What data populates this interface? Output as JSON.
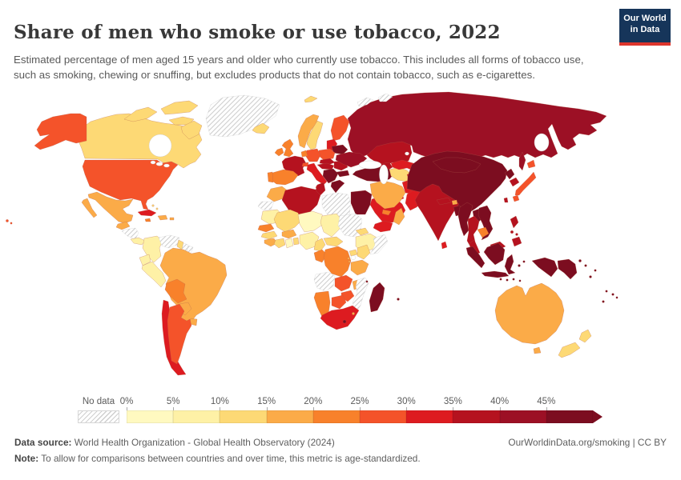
{
  "header": {
    "title": "Share of men who smoke or use tobacco, 2022",
    "subtitle": "Estimated percentage of men aged 15 years and older who currently use tobacco. This includes all forms of tobacco use, such as smoking, chewing or snuffing, but excludes products that do not contain tobacco, such as e-cigarettes.",
    "logo_line1": "Our World",
    "logo_line2": "in Data",
    "logo_bg": "#16355a",
    "logo_accent": "#dd352c"
  },
  "legend": {
    "no_data_label": "No data",
    "tick_labels": [
      "0%",
      "5%",
      "10%",
      "15%",
      "20%",
      "25%",
      "30%",
      "35%",
      "40%",
      "45%"
    ]
  },
  "footer": {
    "source_label": "Data source:",
    "source_text": "World Health Organization - Global Health Observatory (2024)",
    "attribution": "OurWorldinData.org/smoking | CC BY",
    "note_label": "Note:",
    "note_text": "To allow for comparisons between countries and over time, this metric is age-standardized."
  },
  "chart_data": {
    "type": "choropleth",
    "title": "Share of men who smoke or use tobacco",
    "year": 2022,
    "unit": "%",
    "legend_position": "bottom",
    "bin_edges": [
      0,
      5,
      10,
      15,
      20,
      25,
      30,
      35,
      40,
      45
    ],
    "bin_labels": [
      "0-5%",
      "5-10%",
      "10-15%",
      "15-20%",
      "20-25%",
      "25-30%",
      "30-35%",
      "35-40%",
      "40-45%",
      "45%+"
    ],
    "bin_colors": [
      "#fff9c0",
      "#fef1a6",
      "#fdd975",
      "#fbab48",
      "#f8812b",
      "#f4532a",
      "#dd1b20",
      "#b5121f",
      "#9c1025",
      "#7c0d20"
    ],
    "no_data": {
      "label": "No data",
      "pattern": "diagonal-hatch"
    },
    "countries": [
      {
        "id": "canada",
        "name": "Canada",
        "bin": 2,
        "range": "10-15%"
      },
      {
        "id": "greenland",
        "name": "Greenland",
        "bin": "nd",
        "range": "No data"
      },
      {
        "id": "iceland",
        "name": "Iceland",
        "bin": 2,
        "range": "10-15%"
      },
      {
        "id": "usa",
        "name": "United States",
        "bin": 5,
        "range": "25-30%"
      },
      {
        "id": "mexico",
        "name": "Mexico",
        "bin": 3,
        "range": "15-20%"
      },
      {
        "id": "guatemala",
        "name": "Guatemala",
        "bin": 3,
        "range": "15-20%"
      },
      {
        "id": "honduras-nicaragua",
        "name": "Honduras & Nicaragua",
        "bin": "nd",
        "range": "No data"
      },
      {
        "id": "costa-rica-panama",
        "name": "Costa Rica & Panama",
        "bin": 1,
        "range": "5-10%"
      },
      {
        "id": "cuba",
        "name": "Cuba",
        "bin": 6,
        "range": "30-35%"
      },
      {
        "id": "jamaica",
        "name": "Jamaica",
        "bin": 4,
        "range": "20-25%"
      },
      {
        "id": "hispaniola",
        "name": "Haiti & Dominican Republic",
        "bin": 3,
        "range": "15-20%"
      },
      {
        "id": "puerto-rico",
        "name": "Puerto Rico",
        "bin": 3,
        "range": "15-20%"
      },
      {
        "id": "bahamas",
        "name": "Bahamas",
        "bin": 2,
        "range": "10-15%"
      },
      {
        "id": "colombia",
        "name": "Colombia",
        "bin": 1,
        "range": "5-10%"
      },
      {
        "id": "venezuela",
        "name": "Venezuela",
        "bin": "nd",
        "range": "No data"
      },
      {
        "id": "guyana",
        "name": "Guyana",
        "bin": 2,
        "range": "10-15%"
      },
      {
        "id": "suriname",
        "name": "Suriname",
        "bin": "nd",
        "range": "No data"
      },
      {
        "id": "french-guiana",
        "name": "French Guiana",
        "bin": "nd",
        "range": "No data"
      },
      {
        "id": "ecuador",
        "name": "Ecuador",
        "bin": 1,
        "range": "5-10%"
      },
      {
        "id": "peru",
        "name": "Peru",
        "bin": 1,
        "range": "5-10%"
      },
      {
        "id": "brazil",
        "name": "Brazil",
        "bin": 3,
        "range": "15-20%"
      },
      {
        "id": "bolivia",
        "name": "Bolivia",
        "bin": 4,
        "range": "20-25%"
      },
      {
        "id": "paraguay",
        "name": "Paraguay",
        "bin": 3,
        "range": "15-20%"
      },
      {
        "id": "uruguay",
        "name": "Uruguay",
        "bin": 3,
        "range": "15-20%"
      },
      {
        "id": "chile",
        "name": "Chile",
        "bin": 6,
        "range": "30-35%"
      },
      {
        "id": "argentina",
        "name": "Argentina",
        "bin": 5,
        "range": "25-30%"
      },
      {
        "id": "svalbard",
        "name": "Svalbard",
        "bin": 2,
        "range": "10-15%"
      },
      {
        "id": "uk",
        "name": "United Kingdom",
        "bin": 4,
        "range": "20-25%"
      },
      {
        "id": "ireland",
        "name": "Ireland",
        "bin": 4,
        "range": "20-25%"
      },
      {
        "id": "norway",
        "name": "Norway",
        "bin": 3,
        "range": "15-20%"
      },
      {
        "id": "sweden",
        "name": "Sweden",
        "bin": 2,
        "range": "10-15%"
      },
      {
        "id": "finland",
        "name": "Finland",
        "bin": 5,
        "range": "25-30%"
      },
      {
        "id": "denmark",
        "name": "Denmark",
        "bin": 4,
        "range": "20-25%"
      },
      {
        "id": "benelux",
        "name": "Belgium & Netherlands",
        "bin": 4,
        "range": "20-25%"
      },
      {
        "id": "germany",
        "name": "Germany",
        "bin": 5,
        "range": "25-30%"
      },
      {
        "id": "poland",
        "name": "Poland",
        "bin": 5,
        "range": "25-30%"
      },
      {
        "id": "baltics",
        "name": "Baltic states",
        "bin": 6,
        "range": "30-35%"
      },
      {
        "id": "belarus",
        "name": "Belarus",
        "bin": 9,
        "range": "45%+"
      },
      {
        "id": "ukraine",
        "name": "Ukraine",
        "bin": 8,
        "range": "40-45%"
      },
      {
        "id": "france",
        "name": "France",
        "bin": 7,
        "range": "35-40%"
      },
      {
        "id": "spain",
        "name": "Spain",
        "bin": 4,
        "range": "20-25%"
      },
      {
        "id": "portugal",
        "name": "Portugal",
        "bin": 4,
        "range": "20-25%"
      },
      {
        "id": "switzerland",
        "name": "Switzerland",
        "bin": 5,
        "range": "25-30%"
      },
      {
        "id": "italy",
        "name": "Italy",
        "bin": 6,
        "range": "30-35%"
      },
      {
        "id": "czech-slovakia",
        "name": "Czechia & Slovakia",
        "bin": 7,
        "range": "35-40%"
      },
      {
        "id": "austria-hungary",
        "name": "Austria & Hungary",
        "bin": 7,
        "range": "35-40%"
      },
      {
        "id": "balkans",
        "name": "Western Balkans",
        "bin": 9,
        "range": "45%+"
      },
      {
        "id": "romania",
        "name": "Romania",
        "bin": 7,
        "range": "35-40%"
      },
      {
        "id": "bulgaria",
        "name": "Bulgaria",
        "bin": 9,
        "range": "45%+"
      },
      {
        "id": "greece",
        "name": "Greece",
        "bin": 9,
        "range": "45%+"
      },
      {
        "id": "russia",
        "name": "Russia",
        "bin": 8,
        "range": "40-45%"
      },
      {
        "id": "arctic-islands",
        "name": "Arctic islands",
        "bin": "nd",
        "range": "No data"
      },
      {
        "id": "kazakhstan",
        "name": "Kazakhstan",
        "bin": 7,
        "range": "35-40%"
      },
      {
        "id": "caucasus",
        "name": "Georgia, Armenia & Azerbaijan",
        "bin": 7,
        "range": "35-40%"
      },
      {
        "id": "turkey",
        "name": "Turkey",
        "bin": 9,
        "range": "45%+"
      },
      {
        "id": "syria",
        "name": "Syria",
        "bin": 9,
        "range": "45%+"
      },
      {
        "id": "levant",
        "name": "Israel, Lebanon & Jordan",
        "bin": 9,
        "range": "45%+"
      },
      {
        "id": "iraq",
        "name": "Iraq",
        "bin": 6,
        "range": "30-35%"
      },
      {
        "id": "saudi-arabia",
        "name": "Saudi Arabia",
        "bin": 6,
        "range": "30-35%"
      },
      {
        "id": "yemen",
        "name": "Yemen",
        "bin": 6,
        "range": "30-35%"
      },
      {
        "id": "oman",
        "name": "Oman",
        "bin": 3,
        "range": "15-20%"
      },
      {
        "id": "uae-qatar",
        "name": "UAE & Qatar",
        "bin": 4,
        "range": "20-25%"
      },
      {
        "id": "iran",
        "name": "Iran",
        "bin": 3,
        "range": "15-20%"
      },
      {
        "id": "turkmenistan",
        "name": "Turkmenistan",
        "bin": 2,
        "range": "10-15%"
      },
      {
        "id": "uzbekistan",
        "name": "Uzbekistan",
        "bin": 6,
        "range": "30-35%"
      },
      {
        "id": "kyrgyzstan-tajikistan",
        "name": "Kyrgyzstan & Tajikistan",
        "bin": 6,
        "range": "30-35%"
      },
      {
        "id": "afghanistan",
        "name": "Afghanistan",
        "bin": 6,
        "range": "30-35%"
      },
      {
        "id": "pakistan",
        "name": "Pakistan",
        "bin": 6,
        "range": "30-35%"
      },
      {
        "id": "india",
        "name": "India",
        "bin": 7,
        "range": "35-40%"
      },
      {
        "id": "nepal",
        "name": "Nepal",
        "bin": 7,
        "range": "35-40%"
      },
      {
        "id": "bhutan",
        "name": "Bhutan",
        "bin": 3,
        "range": "15-20%"
      },
      {
        "id": "bangladesh",
        "name": "Bangladesh",
        "bin": 9,
        "range": "45%+"
      },
      {
        "id": "sri-lanka",
        "name": "Sri Lanka",
        "bin": 6,
        "range": "30-35%"
      },
      {
        "id": "china",
        "name": "China",
        "bin": 9,
        "range": "45%+"
      },
      {
        "id": "mongolia",
        "name": "Mongolia",
        "bin": 9,
        "range": "45%+"
      },
      {
        "id": "north-korea",
        "name": "North Korea",
        "bin": 9,
        "range": "45%+"
      },
      {
        "id": "south-korea",
        "name": "South Korea",
        "bin": 7,
        "range": "35-40%"
      },
      {
        "id": "japan",
        "name": "Japan",
        "bin": 5,
        "range": "25-30%"
      },
      {
        "id": "taiwan",
        "name": "Taiwan",
        "bin": 7,
        "range": "35-40%"
      },
      {
        "id": "myanmar",
        "name": "Myanmar",
        "bin": 9,
        "range": "45%+"
      },
      {
        "id": "laos",
        "name": "Laos",
        "bin": 9,
        "range": "45%+"
      },
      {
        "id": "thailand",
        "name": "Thailand",
        "bin": 7,
        "range": "35-40%"
      },
      {
        "id": "vietnam",
        "name": "Vietnam",
        "bin": 9,
        "range": "45%+"
      },
      {
        "id": "cambodia",
        "name": "Cambodia",
        "bin": 4,
        "range": "20-25%"
      },
      {
        "id": "malaysia",
        "name": "Malaysia",
        "bin": 7,
        "range": "35-40%"
      },
      {
        "id": "philippines",
        "name": "Philippines",
        "bin": 7,
        "range": "35-40%"
      },
      {
        "id": "indonesia",
        "name": "Indonesia",
        "bin": 9,
        "range": "45%+"
      },
      {
        "id": "papua-new-guinea",
        "name": "Papua New Guinea",
        "bin": 9,
        "range": "45%+"
      },
      {
        "id": "pacific-islands",
        "name": "Fiji & Pacific islands",
        "bin": 9,
        "range": "45%+"
      },
      {
        "id": "morocco",
        "name": "Morocco",
        "bin": 3,
        "range": "15-20%"
      },
      {
        "id": "western-sahara",
        "name": "Western Sahara",
        "bin": "nd",
        "range": "No data"
      },
      {
        "id": "algeria",
        "name": "Algeria",
        "bin": 7,
        "range": "35-40%"
      },
      {
        "id": "tunisia",
        "name": "Tunisia",
        "bin": 7,
        "range": "35-40%"
      },
      {
        "id": "libya",
        "name": "Libya",
        "bin": "nd",
        "range": "No data"
      },
      {
        "id": "egypt",
        "name": "Egypt",
        "bin": 9,
        "range": "45%+"
      },
      {
        "id": "mauritania",
        "name": "Mauritania",
        "bin": 1,
        "range": "5-10%"
      },
      {
        "id": "mali",
        "name": "Mali",
        "bin": 2,
        "range": "10-15%"
      },
      {
        "id": "niger",
        "name": "Niger",
        "bin": 0,
        "range": "0-5%"
      },
      {
        "id": "chad",
        "name": "Chad",
        "bin": 1,
        "range": "5-10%"
      },
      {
        "id": "sudan",
        "name": "Sudan",
        "bin": "nd",
        "range": "No data"
      },
      {
        "id": "eritrea",
        "name": "Eritrea",
        "bin": 2,
        "range": "10-15%"
      },
      {
        "id": "ethiopia",
        "name": "Ethiopia",
        "bin": 1,
        "range": "5-10%"
      },
      {
        "id": "somalia",
        "name": "Somalia",
        "bin": "nd",
        "range": "No data"
      },
      {
        "id": "senegal",
        "name": "Senegal",
        "bin": 4,
        "range": "20-25%"
      },
      {
        "id": "guinea",
        "name": "Guinea",
        "bin": 2,
        "range": "10-15%"
      },
      {
        "id": "sierra-leone-liberia",
        "name": "Sierra Leone & Liberia",
        "bin": 3,
        "range": "15-20%"
      },
      {
        "id": "ivory-coast",
        "name": "Côte d'Ivoire",
        "bin": 2,
        "range": "10-15%"
      },
      {
        "id": "ghana",
        "name": "Ghana",
        "bin": 0,
        "range": "0-5%"
      },
      {
        "id": "togo-benin",
        "name": "Togo & Benin",
        "bin": 2,
        "range": "10-15%"
      },
      {
        "id": "burkina-faso",
        "name": "Burkina Faso",
        "bin": 3,
        "range": "15-20%"
      },
      {
        "id": "nigeria",
        "name": "Nigeria",
        "bin": 1,
        "range": "5-10%"
      },
      {
        "id": "cameroon",
        "name": "Cameroon",
        "bin": 2,
        "range": "10-15%"
      },
      {
        "id": "central-african-republic",
        "name": "Central African Republic",
        "bin": 2,
        "range": "10-15%"
      },
      {
        "id": "gabon-congo",
        "name": "Gabon & Congo",
        "bin": 4,
        "range": "20-25%"
      },
      {
        "id": "drc",
        "name": "Democratic Republic of Congo",
        "bin": 4,
        "range": "20-25%"
      },
      {
        "id": "uganda",
        "name": "Uganda",
        "bin": 2,
        "range": "10-15%"
      },
      {
        "id": "kenya",
        "name": "Kenya",
        "bin": 2,
        "range": "10-15%"
      },
      {
        "id": "tanzania",
        "name": "Tanzania",
        "bin": 3,
        "range": "15-20%"
      },
      {
        "id": "rwanda-burundi",
        "name": "Rwanda & Burundi",
        "bin": 3,
        "range": "15-20%"
      },
      {
        "id": "angola",
        "name": "Angola",
        "bin": "nd",
        "range": "No data"
      },
      {
        "id": "zambia",
        "name": "Zambia",
        "bin": 5,
        "range": "25-30%"
      },
      {
        "id": "malawi",
        "name": "Malawi",
        "bin": 3,
        "range": "15-20%"
      },
      {
        "id": "mozambique",
        "name": "Mozambique",
        "bin": "nd",
        "range": "No data"
      },
      {
        "id": "zimbabwe",
        "name": "Zimbabwe",
        "bin": 5,
        "range": "25-30%"
      },
      {
        "id": "botswana",
        "name": "Botswana",
        "bin": 5,
        "range": "25-30%"
      },
      {
        "id": "namibia",
        "name": "Namibia",
        "bin": 4,
        "range": "20-25%"
      },
      {
        "id": "south-africa",
        "name": "South Africa",
        "bin": 6,
        "range": "30-35%"
      },
      {
        "id": "lesotho",
        "name": "Lesotho",
        "bin": 9,
        "range": "45%+"
      },
      {
        "id": "eswatini",
        "name": "Eswatini",
        "bin": 3,
        "range": "15-20%"
      },
      {
        "id": "madagascar",
        "name": "Madagascar",
        "bin": 9,
        "range": "45%+"
      },
      {
        "id": "comoros-mauritius",
        "name": "Comoros & Mauritius",
        "bin": 9,
        "range": "45%+"
      },
      {
        "id": "australia",
        "name": "Australia",
        "bin": 3,
        "range": "15-20%"
      },
      {
        "id": "new-zealand",
        "name": "New Zealand",
        "bin": 2,
        "range": "10-15%"
      }
    ]
  }
}
